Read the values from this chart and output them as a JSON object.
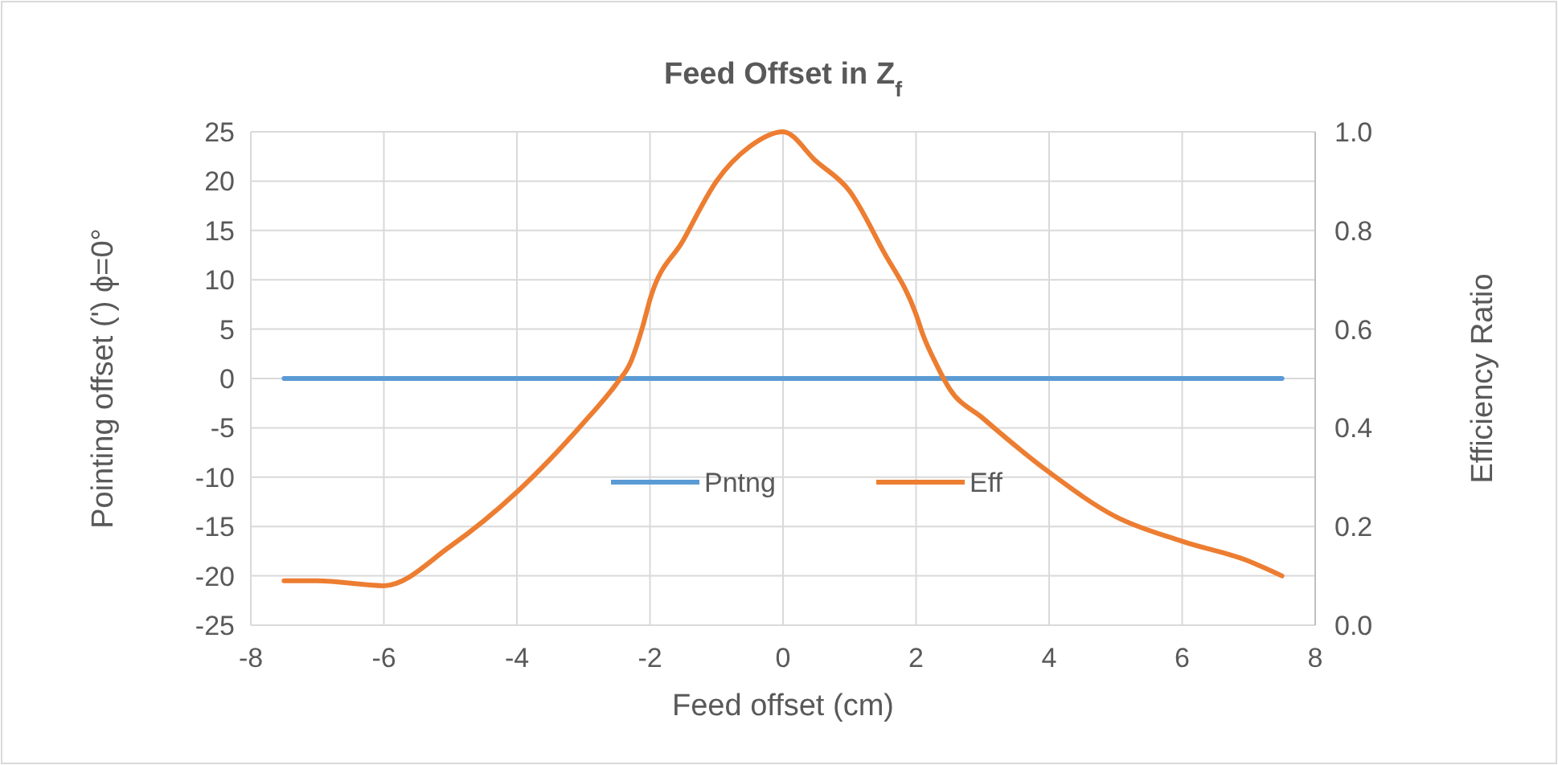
{
  "chart_data": {
    "type": "line",
    "title": "Feed Offset in Z$_{f}$",
    "xlabel": "Feed offset (cm)",
    "ylabel": "Pointing offset (') ϕ=0°",
    "y2label": "Efficiency Ratio",
    "xlim": [
      -8,
      8
    ],
    "xticks": [
      -8,
      -6,
      -4,
      -2,
      0,
      2,
      4,
      6,
      8
    ],
    "ylim": [
      -25,
      25
    ],
    "yticks": [
      -25,
      -20,
      -15,
      -10,
      -5,
      0,
      5,
      10,
      15,
      20,
      25
    ],
    "y2lim": [
      0,
      1
    ],
    "y2ticks": [
      {
        "value": 0,
        "label": "0.0"
      },
      {
        "value": 0.2,
        "label": "0.2"
      },
      {
        "value": 0.4,
        "label": "0.4"
      },
      {
        "value": 0.6,
        "label": "0.6"
      },
      {
        "value": 0.8,
        "label": "0.8"
      },
      {
        "value": 1,
        "label": "1.0"
      }
    ],
    "grid": true,
    "legend": "bottom",
    "line_style": "solid",
    "marker": "none",
    "series": [
      {
        "name": "Pntng",
        "color": "#5b9bd5",
        "x": [
          -7.5,
          -5,
          -2.5,
          0,
          2.5,
          5,
          7.5
        ],
        "values": [
          0,
          0,
          0,
          0,
          0,
          0,
          0
        ]
      },
      {
        "name": "Eff",
        "color": "#ed7d31",
        "axis": "y2",
        "x": [
          -7.5,
          -7,
          -6,
          -5,
          -4,
          -3,
          -2.5,
          -2.3,
          -2.1,
          -2,
          -1.5,
          -1,
          -0.5,
          0,
          0.5,
          1,
          1.5,
          2,
          2.1,
          2.3,
          2.5,
          3,
          4,
          5,
          6,
          7,
          7.5
        ],
        "values": [
          0.09,
          0.09,
          0.08,
          0.16,
          0.27,
          0.41,
          0.49,
          0.53,
          0.61,
          0.66,
          0.78,
          0.9,
          0.97,
          1.0,
          0.94,
          0.88,
          0.76,
          0.63,
          0.59,
          0.53,
          0.48,
          0.42,
          0.31,
          0.22,
          0.17,
          0.13,
          0.1
        ]
      }
    ]
  }
}
